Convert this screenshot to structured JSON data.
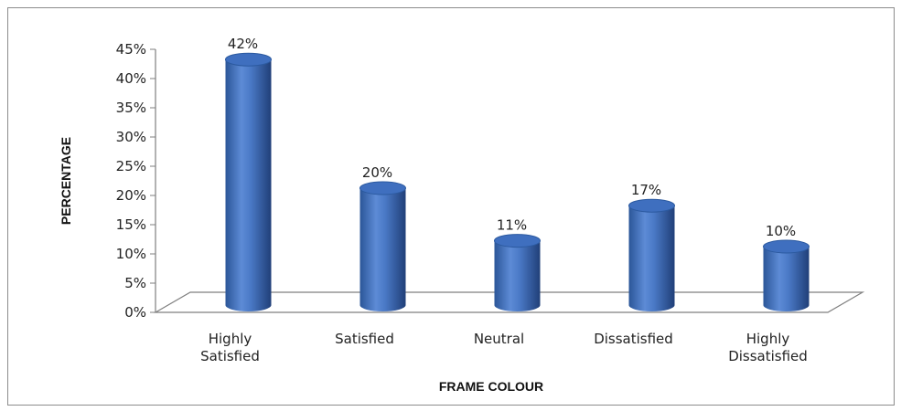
{
  "chart_data": {
    "type": "bar",
    "style": "3d-cylinder",
    "categories": [
      "Highly Satisfied",
      "Satisfied",
      "Neutral",
      "Dissatisfied",
      "Highly Dissatisfied"
    ],
    "values": [
      42,
      20,
      11,
      17,
      10
    ],
    "data_labels": [
      "42%",
      "20%",
      "11%",
      "17%",
      "10%"
    ],
    "xlabel": "FRAME COLOUR",
    "ylabel": "PERCENTAGE",
    "ylim": [
      0,
      45
    ],
    "y_ticks": [
      "0%",
      "5%",
      "10%",
      "15%",
      "20%",
      "25%",
      "30%",
      "35%",
      "40%",
      "45%"
    ],
    "legend": "none",
    "grid": false,
    "colors": {
      "bar": "#3f6fbf",
      "bar_dark": "#234a8c",
      "bar_light": "#6e98dc",
      "axis": "#7f7f7f"
    }
  }
}
